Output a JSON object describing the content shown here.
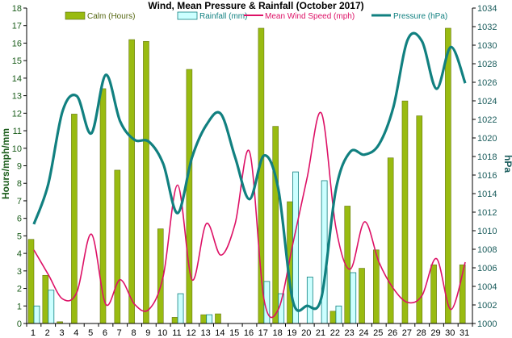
{
  "chart_data": {
    "type": "bar",
    "title": "Wind, Mean Pressure & Rainfall (October 2017)",
    "xlabel": "",
    "ylabel": "Hours/mph/mm",
    "y2label": "hPa",
    "ylim": [
      0,
      18
    ],
    "y2lim": [
      1000,
      1034
    ],
    "categories": [
      "1",
      "2",
      "3",
      "4",
      "5",
      "6",
      "7",
      "8",
      "9",
      "10",
      "11",
      "12",
      "13",
      "14",
      "15",
      "16",
      "17",
      "18",
      "19",
      "20",
      "21",
      "22",
      "23",
      "24",
      "25",
      "26",
      "27",
      "28",
      "29",
      "30",
      "31"
    ],
    "y_ticks": [
      "0",
      "1",
      "2",
      "3",
      "4",
      "5",
      "6",
      "7",
      "8",
      "9",
      "10",
      "11",
      "12",
      "13",
      "14",
      "15",
      "16",
      "17",
      "18"
    ],
    "y2_ticks": [
      "1000",
      "1002",
      "1004",
      "1006",
      "1008",
      "1010",
      "1012",
      "1014",
      "1016",
      "1018",
      "1020",
      "1022",
      "1024",
      "1026",
      "1028",
      "1030",
      "1032",
      "1034"
    ],
    "series": [
      {
        "name": "Calm (Hours)",
        "kind": "bar",
        "axis": "left",
        "color": "#99bb11",
        "values": [
          4.8,
          2.75,
          0.1,
          11.95,
          0,
          13.4,
          8.75,
          16.2,
          16.1,
          5.4,
          0.35,
          14.5,
          0.5,
          0.55,
          0,
          0,
          16.85,
          11.25,
          6.95,
          0,
          0,
          0.7,
          6.7,
          3.15,
          4.2,
          9.45,
          12.7,
          11.85,
          3.35,
          16.85,
          3.35
        ]
      },
      {
        "name": "Rainfall (mm)",
        "kind": "bar",
        "axis": "left",
        "color": "#ccffff",
        "values": [
          1.0,
          1.9,
          0,
          0,
          0,
          0,
          0,
          0,
          0,
          0,
          1.7,
          0,
          0.5,
          0,
          0,
          0,
          2.4,
          1.7,
          8.65,
          2.65,
          8.15,
          1.0,
          2.9,
          0,
          0,
          0,
          0,
          0,
          0,
          0,
          0
        ]
      },
      {
        "name": "Mean Wind Speed (mph)",
        "kind": "line",
        "axis": "left",
        "color": "#dd1166",
        "values": [
          4.2,
          2.8,
          1.4,
          1.8,
          5.1,
          1.1,
          2.5,
          1.1,
          0.8,
          2.7,
          7.9,
          2.5,
          5.7,
          3.9,
          5.7,
          9.8,
          1.4,
          0.8,
          4.5,
          8.3,
          12.0,
          5.5,
          3.1,
          5.8,
          3.5,
          2.0,
          1.2,
          1.6,
          3.7,
          0.8,
          3.5
        ]
      },
      {
        "name": "Pressure (hPa)",
        "kind": "line",
        "axis": "right",
        "color": "#118080",
        "values": [
          1010.7,
          1015.0,
          1022.9,
          1024.5,
          1020.5,
          1026.8,
          1021.8,
          1019.8,
          1019.6,
          1017.2,
          1011.9,
          1017.9,
          1021.4,
          1022.6,
          1017.9,
          1013.4,
          1018.1,
          1014.5,
          1002.5,
          1001.9,
          1002.8,
          1014.4,
          1018.5,
          1018.2,
          1019.3,
          1023.3,
          1030.6,
          1030.4,
          1025.3,
          1029.8,
          1025.9
        ]
      }
    ]
  }
}
